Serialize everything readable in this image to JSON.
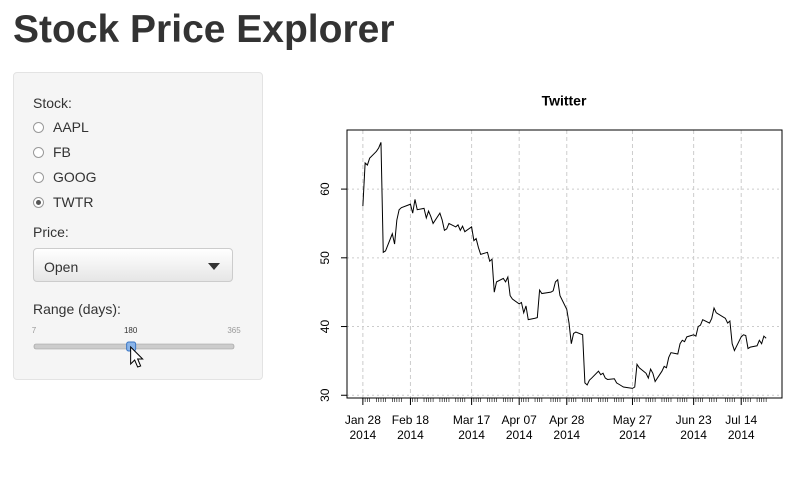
{
  "header": {
    "title": "Stock Price Explorer"
  },
  "sidebar": {
    "stock": {
      "label": "Stock:",
      "options": [
        "AAPL",
        "FB",
        "GOOG",
        "TWTR"
      ],
      "selected": 3
    },
    "price": {
      "label": "Price:",
      "value": "Open"
    },
    "range": {
      "label": "Range (days):",
      "min": 7,
      "max": 365,
      "value": 180
    }
  },
  "chart_data": {
    "type": "line",
    "title": "Twitter",
    "color": "#000000",
    "grid": true,
    "x": [
      "2014-01-28",
      "2014-01-29",
      "2014-01-30",
      "2014-01-31",
      "2014-02-03",
      "2014-02-04",
      "2014-02-05",
      "2014-02-06",
      "2014-02-07",
      "2014-02-10",
      "2014-02-11",
      "2014-02-12",
      "2014-02-13",
      "2014-02-14",
      "2014-02-18",
      "2014-02-19",
      "2014-02-20",
      "2014-02-21",
      "2014-02-24",
      "2014-02-25",
      "2014-02-26",
      "2014-02-27",
      "2014-02-28",
      "2014-03-03",
      "2014-03-04",
      "2014-03-05",
      "2014-03-06",
      "2014-03-07",
      "2014-03-10",
      "2014-03-11",
      "2014-03-12",
      "2014-03-13",
      "2014-03-14",
      "2014-03-17",
      "2014-03-18",
      "2014-03-19",
      "2014-03-20",
      "2014-03-21",
      "2014-03-24",
      "2014-03-25",
      "2014-03-26",
      "2014-03-27",
      "2014-03-28",
      "2014-03-31",
      "2014-04-01",
      "2014-04-02",
      "2014-04-03",
      "2014-04-04",
      "2014-04-07",
      "2014-04-08",
      "2014-04-09",
      "2014-04-10",
      "2014-04-11",
      "2014-04-14",
      "2014-04-15",
      "2014-04-16",
      "2014-04-17",
      "2014-04-21",
      "2014-04-22",
      "2014-04-23",
      "2014-04-24",
      "2014-04-25",
      "2014-04-28",
      "2014-04-29",
      "2014-04-30",
      "2014-05-01",
      "2014-05-02",
      "2014-05-05",
      "2014-05-06",
      "2014-05-07",
      "2014-05-08",
      "2014-05-09",
      "2014-05-12",
      "2014-05-13",
      "2014-05-14",
      "2014-05-15",
      "2014-05-16",
      "2014-05-19",
      "2014-05-20",
      "2014-05-21",
      "2014-05-22",
      "2014-05-23",
      "2014-05-27",
      "2014-05-28",
      "2014-05-29",
      "2014-05-30",
      "2014-06-02",
      "2014-06-03",
      "2014-06-04",
      "2014-06-05",
      "2014-06-06",
      "2014-06-09",
      "2014-06-10",
      "2014-06-11",
      "2014-06-12",
      "2014-06-13",
      "2014-06-16",
      "2014-06-17",
      "2014-06-18",
      "2014-06-19",
      "2014-06-20",
      "2014-06-23",
      "2014-06-24",
      "2014-06-25",
      "2014-06-26",
      "2014-06-27",
      "2014-06-30",
      "2014-07-01",
      "2014-07-02",
      "2014-07-03",
      "2014-07-07",
      "2014-07-08",
      "2014-07-09",
      "2014-07-10",
      "2014-07-11",
      "2014-07-14",
      "2014-07-15",
      "2014-07-16",
      "2014-07-17",
      "2014-07-18",
      "2014-07-21",
      "2014-07-22",
      "2014-07-23",
      "2014-07-24",
      "2014-07-25"
    ],
    "values": [
      57.5,
      63.8,
      63.5,
      64.5,
      65.5,
      66.0,
      66.8,
      50.8,
      51.0,
      53.5,
      52.0,
      55.5,
      57.0,
      57.3,
      57.8,
      56.5,
      58.5,
      57.0,
      57.2,
      55.8,
      56.8,
      56.0,
      55.0,
      56.5,
      55.5,
      54.0,
      54.2,
      55.0,
      54.5,
      54.8,
      54.0,
      54.6,
      53.8,
      54.5,
      52.5,
      52.8,
      51.5,
      50.5,
      50.8,
      49.5,
      49.8,
      45.0,
      46.5,
      47.0,
      46.5,
      47.2,
      44.5,
      44.0,
      43.3,
      43.5,
      42.0,
      43.0,
      41.0,
      41.2,
      41.3,
      45.3,
      44.8,
      45.0,
      45.2,
      46.5,
      46.8,
      44.5,
      42.5,
      40.5,
      37.5,
      39.0,
      39.2,
      38.8,
      31.8,
      31.5,
      32.2,
      32.5,
      33.5,
      33.0,
      33.2,
      32.5,
      32.3,
      32.4,
      31.8,
      31.6,
      31.4,
      31.2,
      31.0,
      31.2,
      34.5,
      34.0,
      33.2,
      32.5,
      33.8,
      33.2,
      32.0,
      33.5,
      34.2,
      34.0,
      35.5,
      36.2,
      36.0,
      37.5,
      38.0,
      37.8,
      38.5,
      38.8,
      38.6,
      40.0,
      40.2,
      41.0,
      40.5,
      41.2,
      42.7,
      42.0,
      41.2,
      40.5,
      40.8,
      37.5,
      36.5,
      38.5,
      38.8,
      38.7,
      36.8,
      37.0,
      37.2,
      38.0,
      37.5,
      38.6,
      38.3
    ],
    "xlim": [
      "2014-01-21",
      "2014-08-01"
    ],
    "xticks": [
      {
        "value": "2014-01-28",
        "label": [
          "Jan 28",
          "2014"
        ]
      },
      {
        "value": "2014-02-18",
        "label": [
          "Feb 18",
          "2014"
        ]
      },
      {
        "value": "2014-03-17",
        "label": [
          "Mar 17",
          "2014"
        ]
      },
      {
        "value": "2014-04-07",
        "label": [
          "Apr 07",
          "2014"
        ]
      },
      {
        "value": "2014-04-28",
        "label": [
          "Apr 28",
          "2014"
        ]
      },
      {
        "value": "2014-05-27",
        "label": [
          "May 27",
          "2014"
        ]
      },
      {
        "value": "2014-06-23",
        "label": [
          "Jun 23",
          "2014"
        ]
      },
      {
        "value": "2014-07-14",
        "label": [
          "Jul 14",
          "2014"
        ]
      }
    ],
    "ylim": [
      29.6,
      68.6
    ],
    "yticks": [
      30,
      40,
      50,
      60
    ]
  }
}
